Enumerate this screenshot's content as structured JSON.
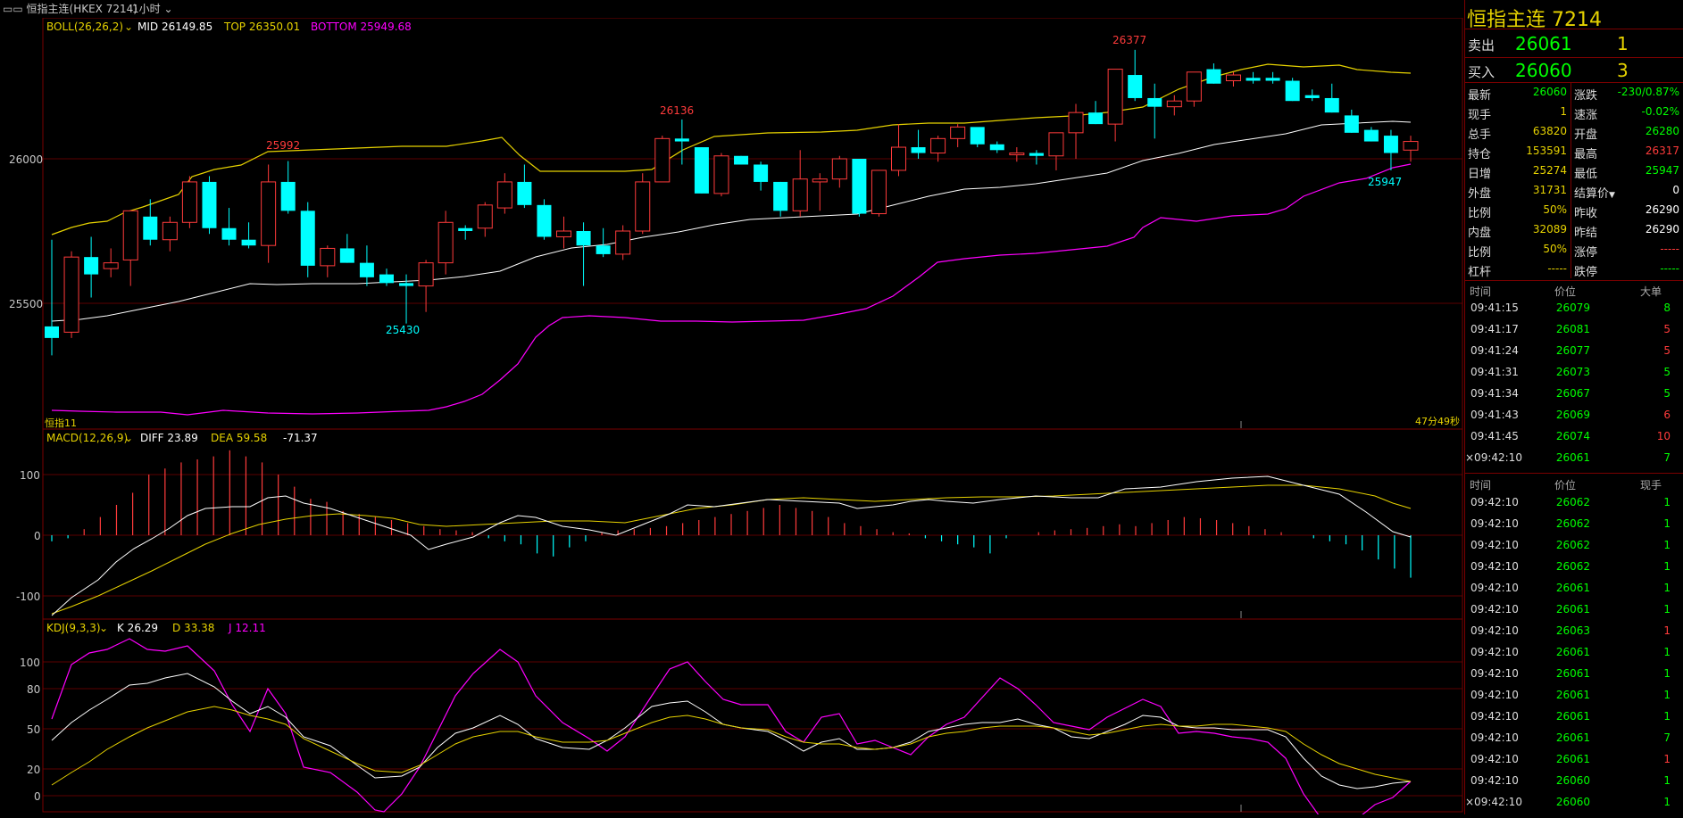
{
  "toolbar": {
    "symbol_label": "恒指主连(HKEX 7214)",
    "period_label": "1小时"
  },
  "colors": {
    "up": "#ff3b3b",
    "down": "#00ffff",
    "mid": "#ffffff",
    "top": "#e6d200",
    "bottom": "#ff00ff",
    "grid": "#7a0000",
    "green": "#00ff00",
    "yellow": "#ffff00"
  },
  "boll": {
    "label": "BOLL(26,26,2)",
    "mid": "MID 26149.85",
    "top": "TOP 26350.01",
    "bottom": "BOTTOM 25949.68"
  },
  "price_axis": {
    "t26000": "26000",
    "t25500": "25500"
  },
  "price_annotations": {
    "high_a": "25992",
    "high_b": "26136",
    "high_c": "26377",
    "low_a": "25430",
    "low_b": "25947"
  },
  "status": {
    "left_label": "恒指11",
    "countdown": "47分49秒"
  },
  "macd": {
    "label": "MACD(12,26,9)",
    "diff": "DIFF 23.89",
    "dea": "DEA 59.58",
    "macd": "-71.37",
    "t100": "100",
    "t0": "0",
    "tm100": "-100"
  },
  "kdj": {
    "label": "KDJ(9,3,3)",
    "k": "K 26.29",
    "d": "D 33.38",
    "j": "J 12.11",
    "t100": "100",
    "t80": "80",
    "t50": "50",
    "t20": "20",
    "t0": "0"
  },
  "candles": [
    [
      25420,
      25720,
      25320,
      25380
    ],
    [
      25400,
      25680,
      25380,
      25660
    ],
    [
      25660,
      25730,
      25520,
      25600
    ],
    [
      25620,
      25690,
      25590,
      25640
    ],
    [
      25650,
      25820,
      25560,
      25820
    ],
    [
      25800,
      25860,
      25700,
      25720
    ],
    [
      25720,
      25800,
      25680,
      25780
    ],
    [
      25780,
      25940,
      25760,
      25920
    ],
    [
      25920,
      25940,
      25740,
      25760
    ],
    [
      25760,
      25830,
      25700,
      25720
    ],
    [
      25720,
      25780,
      25690,
      25700
    ],
    [
      25700,
      25980,
      25640,
      25920
    ],
    [
      25920,
      25992,
      25810,
      25820
    ],
    [
      25820,
      25850,
      25590,
      25630
    ],
    [
      25630,
      25700,
      25590,
      25690
    ],
    [
      25690,
      25740,
      25640,
      25640
    ],
    [
      25640,
      25700,
      25560,
      25590
    ],
    [
      25600,
      25620,
      25560,
      25570
    ],
    [
      25570,
      25600,
      25430,
      25560
    ],
    [
      25560,
      25650,
      25470,
      25640
    ],
    [
      25640,
      25820,
      25600,
      25780
    ],
    [
      25760,
      25770,
      25720,
      25750
    ],
    [
      25760,
      25850,
      25730,
      25840
    ],
    [
      25830,
      25950,
      25810,
      25920
    ],
    [
      25920,
      25980,
      25830,
      25840
    ],
    [
      25840,
      25860,
      25720,
      25730
    ],
    [
      25730,
      25800,
      25690,
      25750
    ],
    [
      25750,
      25780,
      25560,
      25700
    ],
    [
      25700,
      25760,
      25660,
      25670
    ],
    [
      25670,
      25770,
      25650,
      25750
    ],
    [
      25750,
      25950,
      25740,
      25920
    ],
    [
      25920,
      26080,
      25920,
      26070
    ],
    [
      26070,
      26136,
      25980,
      26060
    ],
    [
      26040,
      26040,
      25880,
      25880
    ],
    [
      25880,
      26020,
      25870,
      26010
    ],
    [
      26010,
      26010,
      25980,
      25980
    ],
    [
      25980,
      25990,
      25890,
      25920
    ],
    [
      25920,
      25920,
      25800,
      25820
    ],
    [
      25820,
      26030,
      25800,
      25930
    ],
    [
      25920,
      25950,
      25820,
      25930
    ],
    [
      25930,
      26010,
      25900,
      26000
    ],
    [
      26000,
      26000,
      25800,
      25810
    ],
    [
      25810,
      25960,
      25800,
      25960
    ],
    [
      25960,
      26120,
      25940,
      26040
    ],
    [
      26040,
      26100,
      26000,
      26020
    ],
    [
      26020,
      26080,
      25990,
      26070
    ],
    [
      26070,
      26120,
      26040,
      26110
    ],
    [
      26110,
      26100,
      26040,
      26050
    ],
    [
      26050,
      26060,
      26020,
      26030
    ],
    [
      26020,
      26040,
      25990,
      26020
    ],
    [
      26020,
      26030,
      25980,
      26010
    ],
    [
      26010,
      26090,
      25960,
      26090
    ],
    [
      26090,
      26190,
      26000,
      26160
    ],
    [
      26160,
      26200,
      26120,
      26120
    ],
    [
      26120,
      26310,
      26060,
      26310
    ],
    [
      26290,
      26377,
      26200,
      26210
    ],
    [
      26210,
      26260,
      26070,
      26180
    ],
    [
      26180,
      26220,
      26150,
      26200
    ],
    [
      26200,
      26300,
      26180,
      26300
    ],
    [
      26310,
      26330,
      26260,
      26260
    ],
    [
      26270,
      26300,
      26250,
      26290
    ],
    [
      26280,
      26300,
      26260,
      26270
    ],
    [
      26280,
      26300,
      26260,
      26270
    ],
    [
      26270,
      26280,
      26200,
      26200
    ],
    [
      26220,
      26240,
      26200,
      26210
    ],
    [
      26210,
      26260,
      26160,
      26160
    ],
    [
      26150,
      26170,
      26090,
      26090
    ],
    [
      26100,
      26110,
      26060,
      26060
    ],
    [
      26080,
      26100,
      25960,
      26020
    ],
    [
      26030,
      26080,
      25990,
      26060
    ]
  ],
  "right_panel": {
    "title": "恒指主连  7214",
    "ask_label": "卖出",
    "ask_price": "26061",
    "ask_vol": "1",
    "bid_label": "买入",
    "bid_price": "26060",
    "bid_vol": "3",
    "stats_left": [
      {
        "label": "最新",
        "value": "26060"
      },
      {
        "label": "现手",
        "value": "1"
      },
      {
        "label": "总手",
        "value": "63820"
      },
      {
        "label": "持仓",
        "value": "153591"
      },
      {
        "label": "日增",
        "value": "25274"
      },
      {
        "label": "外盘",
        "value": "31731"
      },
      {
        "label": "比例",
        "value": "50%"
      },
      {
        "label": "内盘",
        "value": "32089"
      },
      {
        "label": "比例",
        "value": "50%"
      },
      {
        "label": "杠杆",
        "value": "-----"
      }
    ],
    "stats_right": [
      {
        "label": "涨跌",
        "value": "-230/0.87%"
      },
      {
        "label": "速涨",
        "value": "-0.02%"
      },
      {
        "label": "开盘",
        "value": "26280"
      },
      {
        "label": "最高",
        "value": "26317"
      },
      {
        "label": "最低",
        "value": "25947"
      },
      {
        "label": "结算价",
        "value": "0"
      },
      {
        "label": "昨收",
        "value": "26290"
      },
      {
        "label": "昨结",
        "value": "26290"
      },
      {
        "label": "涨停",
        "value": "-----"
      },
      {
        "label": "跌停",
        "value": "-----"
      }
    ],
    "big_orders_header": {
      "time": "时间",
      "price": "价位",
      "vol": "大单"
    },
    "big_orders": [
      {
        "time": "09:41:15",
        "price": "26079",
        "vol": "8"
      },
      {
        "time": "09:41:17",
        "price": "26081",
        "vol": "5"
      },
      {
        "time": "09:41:24",
        "price": "26077",
        "vol": "5"
      },
      {
        "time": "09:41:31",
        "price": "26073",
        "vol": "5"
      },
      {
        "time": "09:41:34",
        "price": "26067",
        "vol": "5"
      },
      {
        "time": "09:41:43",
        "price": "26069",
        "vol": "6"
      },
      {
        "time": "09:41:45",
        "price": "26074",
        "vol": "10"
      },
      {
        "time": "09:42:10",
        "price": "26061",
        "vol": "7"
      }
    ],
    "ticks_header": {
      "time": "时间",
      "price": "价位",
      "vol": "现手"
    },
    "ticks": [
      {
        "time": "09:42:10",
        "price": "26062",
        "vol": "1"
      },
      {
        "time": "09:42:10",
        "price": "26062",
        "vol": "1"
      },
      {
        "time": "09:42:10",
        "price": "26062",
        "vol": "1"
      },
      {
        "time": "09:42:10",
        "price": "26062",
        "vol": "1"
      },
      {
        "time": "09:42:10",
        "price": "26061",
        "vol": "1"
      },
      {
        "time": "09:42:10",
        "price": "26061",
        "vol": "1"
      },
      {
        "time": "09:42:10",
        "price": "26063",
        "vol": "1"
      },
      {
        "time": "09:42:10",
        "price": "26061",
        "vol": "1"
      },
      {
        "time": "09:42:10",
        "price": "26061",
        "vol": "1"
      },
      {
        "time": "09:42:10",
        "price": "26061",
        "vol": "1"
      },
      {
        "time": "09:42:10",
        "price": "26061",
        "vol": "1"
      },
      {
        "time": "09:42:10",
        "price": "26061",
        "vol": "7"
      },
      {
        "time": "09:42:10",
        "price": "26061",
        "vol": "1"
      },
      {
        "time": "09:42:10",
        "price": "26060",
        "vol": "1"
      },
      {
        "time": "09:42:10",
        "price": "26060",
        "vol": "1"
      }
    ]
  }
}
